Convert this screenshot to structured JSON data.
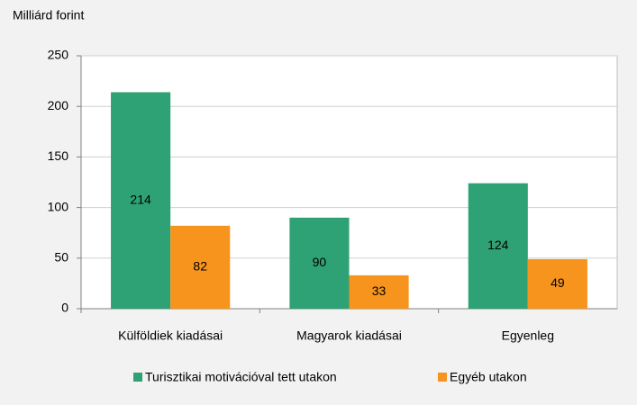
{
  "chart_data": {
    "type": "bar",
    "y_label": "Milliárd forint",
    "categories": [
      "Külföldiek kiadásai",
      "Magyarok kiadásai",
      "Egyenleg"
    ],
    "series": [
      {
        "name": "Turisztikai motivációval tett utakon",
        "color": "#2ea274",
        "values": [
          214,
          90,
          124
        ]
      },
      {
        "name": "Egyéb utakon",
        "color": "#f7941e",
        "values": [
          82,
          33,
          49
        ]
      }
    ],
    "ylim": [
      0,
      250
    ],
    "yticks": [
      0,
      50,
      100,
      150,
      200,
      250
    ],
    "grid": true,
    "legend": "bottom"
  }
}
